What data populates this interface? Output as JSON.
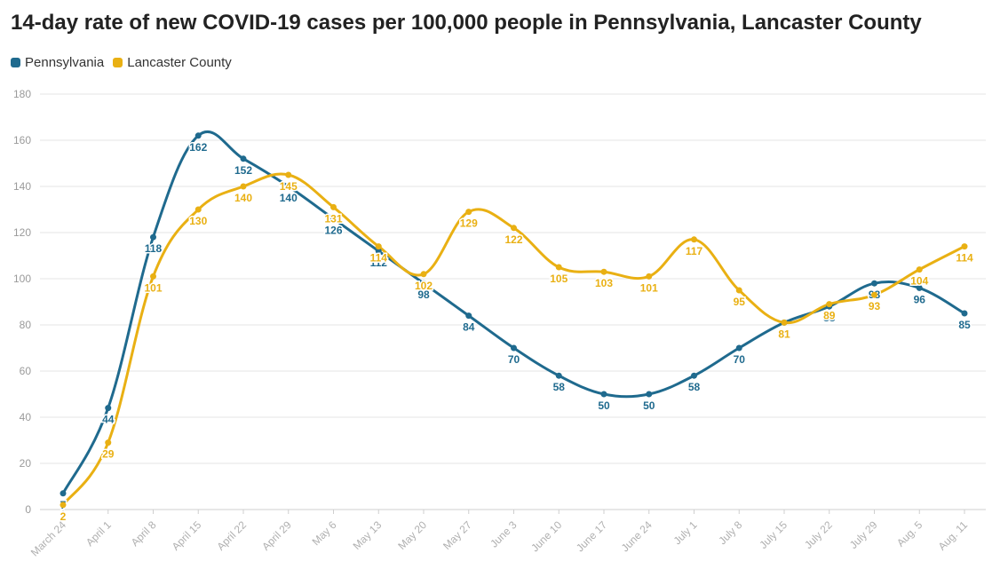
{
  "chart_data": {
    "type": "line",
    "title": "14-day rate of new COVID-19 cases per 100,000 people in Pennsylvania, Lancaster County",
    "xlabel": "",
    "ylabel": "",
    "ylim": [
      0,
      180
    ],
    "yticks": [
      0,
      20,
      40,
      60,
      80,
      100,
      120,
      140,
      160,
      180
    ],
    "grid": true,
    "legend_position": "top-left",
    "categories": [
      "March 24",
      "April 1",
      "April 8",
      "April 15",
      "April 22",
      "April 29",
      "May 6",
      "May 13",
      "May 20",
      "May 27",
      "June 3",
      "June 10",
      "June 17",
      "June 24",
      "July 1",
      "July 8",
      "July 15",
      "July 22",
      "July 29",
      "Aug. 5",
      "Aug. 11"
    ],
    "series": [
      {
        "name": "Pennsylvania",
        "color": "#1f6a8e",
        "values": [
          7,
          44,
          118,
          162,
          152,
          140,
          126,
          112,
          98,
          84,
          70,
          58,
          50,
          50,
          58,
          70,
          81,
          88,
          98,
          96,
          85
        ]
      },
      {
        "name": "Lancaster County",
        "color": "#e9b013",
        "values": [
          2,
          29,
          101,
          130,
          140,
          145,
          131,
          114,
          102,
          129,
          122,
          105,
          103,
          101,
          117,
          95,
          81,
          89,
          93,
          104,
          114
        ]
      }
    ]
  }
}
